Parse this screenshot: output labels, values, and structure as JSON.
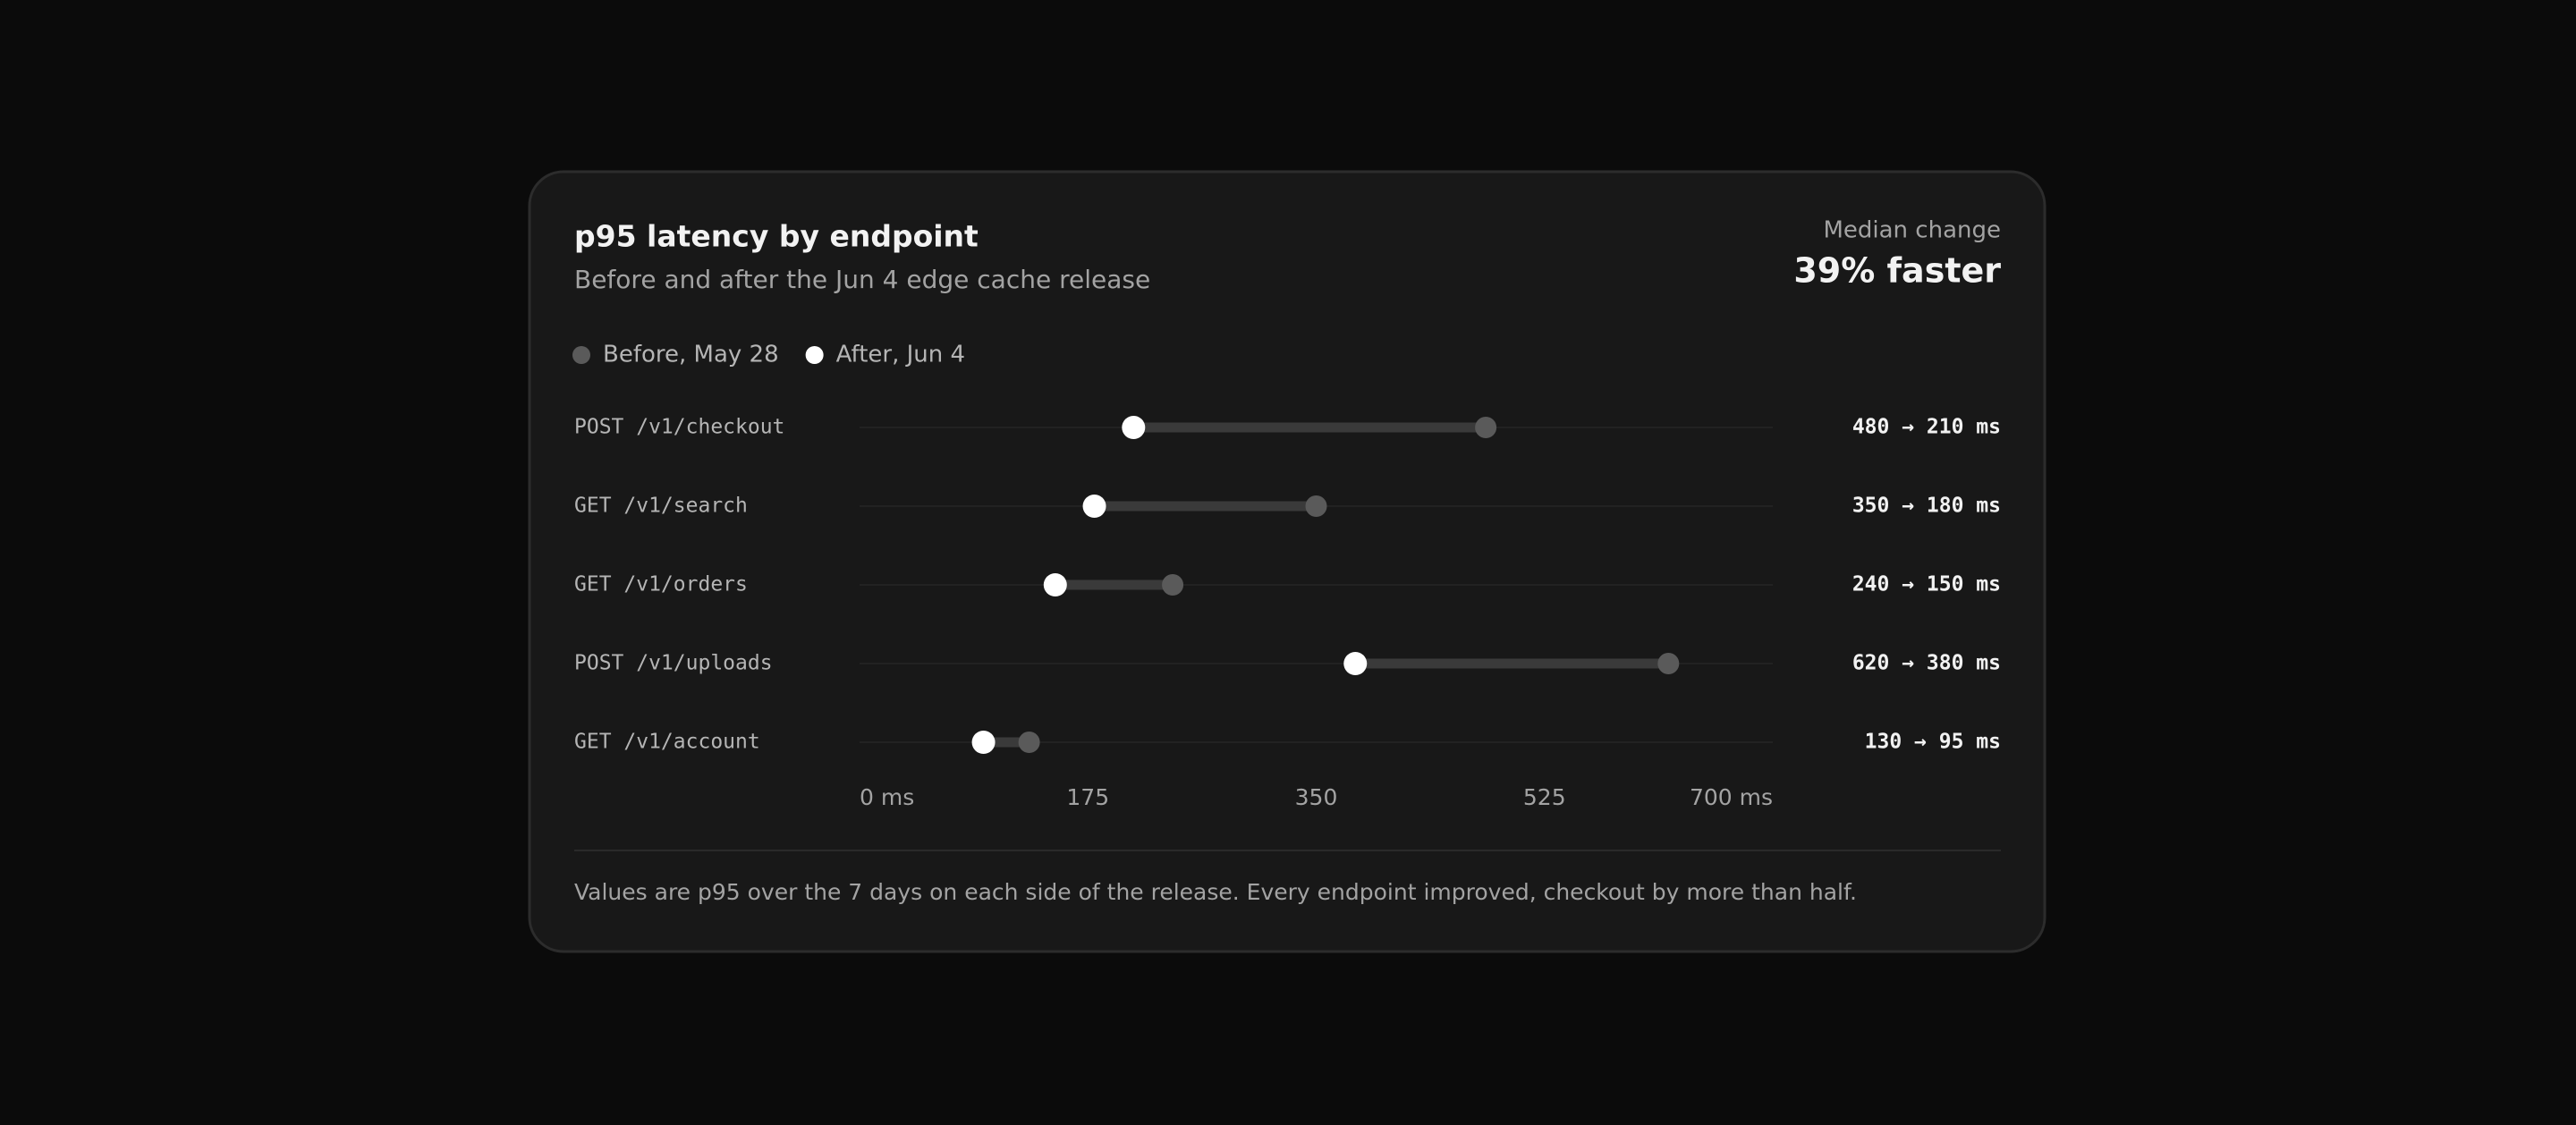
{
  "chart_data": {
    "type": "dumbbell",
    "title": "p95 latency by endpoint",
    "subtitle": "Before and after the Jun 4 edge cache release",
    "summary_label": "Median change",
    "summary_value": "39% faster",
    "categories": [
      "POST /v1/checkout",
      "GET /v1/search",
      "GET /v1/orders",
      "POST /v1/uploads",
      "GET /v1/account"
    ],
    "series": [
      {
        "name": "Before, May 28",
        "color": "#5a5a5a",
        "values": [
          480,
          350,
          240,
          620,
          130
        ]
      },
      {
        "name": "After, Jun 4",
        "color": "#ffffff",
        "values": [
          210,
          180,
          150,
          380,
          95
        ]
      }
    ],
    "value_labels": [
      "480 → 210 ms",
      "350 → 180 ms",
      "240 → 150 ms",
      "620 → 380 ms",
      "130 → 95 ms"
    ],
    "xlim": [
      0,
      700
    ],
    "xticks": [
      {
        "value": 0,
        "label": "0 ms"
      },
      175,
      350,
      525,
      {
        "value": 700,
        "label": "700 ms"
      }
    ],
    "footnote": "Values are p95 over the 7 days on each side of the release. Every endpoint improved, checkout by more than half."
  }
}
